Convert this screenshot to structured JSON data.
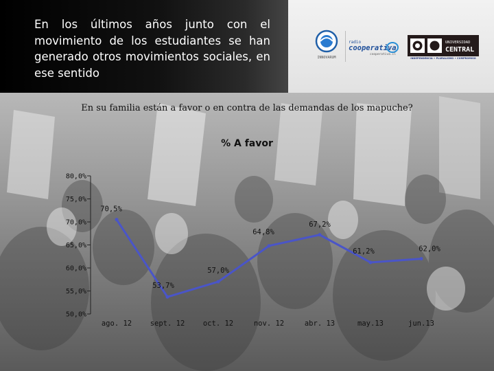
{
  "header": {
    "headline": "En los últimos años junto con el movimiento de los estudiantes se han generado otros movimientos sociales, en ese sentido"
  },
  "logos": {
    "partner_logo_caption": "INNOVARUM",
    "radio": {
      "small_label": "radio",
      "name": "cooperativa",
      "domain": "cooperativa.cl"
    },
    "university": {
      "line1": "UNIVERSIDAD",
      "line2": "CENTRAL",
      "motto": "INDEPENDENCIA • PLURALISMO • COMPROMISO"
    }
  },
  "colors": {
    "line": "#4a55c8",
    "header_dark": "#000000",
    "header_light": "#e8e8e8"
  },
  "chart_data": {
    "type": "line",
    "question": "En su familia están a favor o en contra de las demandas de los mapuche?",
    "title": "% A favor",
    "categories": [
      "ago. 12",
      "sept. 12",
      "oct. 12",
      "nov. 12",
      "abr. 13",
      "may.13",
      "jun.13"
    ],
    "series": [
      {
        "name": "% A favor",
        "values": [
          70.5,
          53.7,
          57.0,
          64.8,
          67.2,
          61.2,
          62.0
        ],
        "labels": [
          "70,5%",
          "53,7%",
          "57,0%",
          "64,8%",
          "67,2%",
          "61,2%",
          "62,0%"
        ]
      }
    ],
    "yticks": [
      50,
      55,
      60,
      65,
      70,
      75,
      80
    ],
    "ytick_labels": [
      "50,0%",
      "55,0%",
      "60,0%",
      "65,0%",
      "70,0%",
      "75,0%",
      "80,0%"
    ],
    "ylim": [
      50,
      80
    ],
    "xlabel": "",
    "ylabel": ""
  }
}
